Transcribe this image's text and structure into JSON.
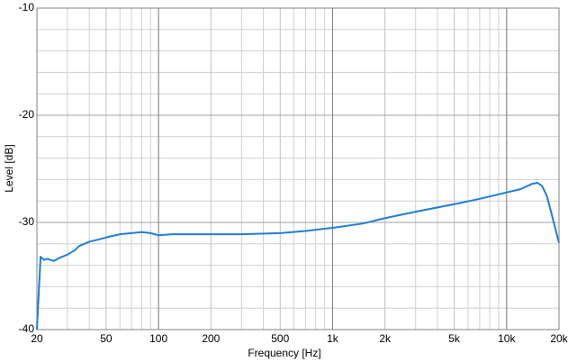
{
  "chart_data": {
    "type": "line",
    "xlabel": "Frequency [Hz]",
    "ylabel": "Level [dB]",
    "xscale": "log",
    "xlim": [
      20,
      20000
    ],
    "ylim": [
      -40,
      -10
    ],
    "xticks": [
      20,
      50,
      100,
      200,
      500,
      {
        "value": 1000,
        "label": "1k"
      },
      {
        "value": 2000,
        "label": "2k"
      },
      {
        "value": 5000,
        "label": "5k"
      },
      {
        "value": 10000,
        "label": "10k"
      },
      {
        "value": 20000,
        "label": "20k"
      }
    ],
    "yticks": [
      -10,
      -20,
      -30,
      -40
    ],
    "x_minor_grid": [
      30,
      40,
      60,
      70,
      80,
      90,
      300,
      400,
      600,
      700,
      800,
      900,
      3000,
      4000,
      6000,
      7000,
      8000,
      9000
    ],
    "y_minor_grid": [
      -38,
      -36,
      -34,
      -32,
      -28,
      -26,
      -24,
      -22,
      -18,
      -16,
      -14,
      -12
    ],
    "x_major_grid": [
      100,
      1000,
      10000
    ],
    "grid": true,
    "series": [
      {
        "name": "Level",
        "color": "#1e7fd8",
        "x": [
          20,
          21,
          22,
          23,
          25,
          27,
          30,
          33,
          35,
          40,
          45,
          50,
          60,
          70,
          80,
          90,
          100,
          120,
          150,
          200,
          300,
          500,
          700,
          1000,
          1500,
          2000,
          3000,
          5000,
          7000,
          10000,
          12000,
          14000,
          15000,
          16000,
          17000,
          18000,
          19000,
          20000
        ],
        "values": [
          -40,
          -33.2,
          -33.5,
          -33.4,
          -33.6,
          -33.3,
          -33.0,
          -32.6,
          -32.2,
          -31.8,
          -31.6,
          -31.4,
          -31.1,
          -31.0,
          -30.9,
          -31.0,
          -31.2,
          -31.1,
          -31.1,
          -31.1,
          -31.1,
          -31.0,
          -30.8,
          -30.5,
          -30.1,
          -29.6,
          -29.0,
          -28.3,
          -27.8,
          -27.2,
          -26.9,
          -26.4,
          -26.3,
          -26.6,
          -27.5,
          -29.0,
          -30.5,
          -31.9
        ]
      }
    ]
  }
}
